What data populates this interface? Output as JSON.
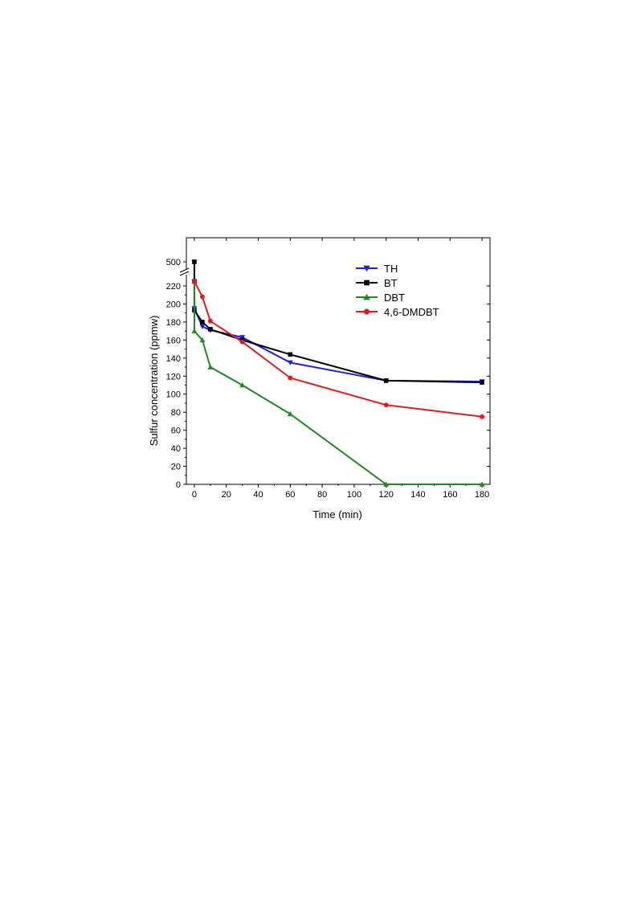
{
  "chart_data": {
    "type": "line",
    "xlabel": "Time (min)",
    "ylabel": "Sulfur concentration (ppmw)",
    "xlim": [
      -5,
      185
    ],
    "ylim": [
      0,
      230
    ],
    "y_axis_break": {
      "break_above": 225,
      "upper_tick": 500
    },
    "x_ticks": [
      0,
      20,
      40,
      60,
      80,
      100,
      120,
      140,
      160,
      180
    ],
    "x_tick_labels": [
      "0",
      "20",
      "40",
      "60",
      "80",
      "100",
      "120",
      "140",
      "160",
      "180"
    ],
    "y_ticks": [
      0,
      20,
      40,
      60,
      80,
      100,
      120,
      140,
      160,
      180,
      200,
      220
    ],
    "y_tick_labels": [
      "0",
      "20",
      "40",
      "60",
      "80",
      "100",
      "120",
      "140",
      "160",
      "180",
      "200",
      "220"
    ],
    "y_break_tick_label": "500",
    "legend_position": "top-right",
    "grid": false,
    "series": [
      {
        "name": "TH",
        "color": "#1f1fe0",
        "marker": "triangle-down",
        "x": [
          0,
          0,
          0,
          5,
          10,
          30,
          60,
          120,
          180
        ],
        "y": [
          500,
          225,
          195,
          175,
          171,
          163,
          135,
          115,
          114
        ]
      },
      {
        "name": "BT",
        "color": "#000000",
        "marker": "square",
        "x": [
          0,
          0,
          0,
          5,
          10,
          30,
          60,
          120,
          180
        ],
        "y": [
          500,
          225,
          193,
          180,
          172,
          160,
          144,
          115,
          113
        ]
      },
      {
        "name": "DBT",
        "color": "#1c8a1c",
        "marker": "triangle-up",
        "x": [
          0,
          0,
          5,
          10,
          30,
          60,
          120,
          180
        ],
        "y": [
          225,
          170,
          160,
          130,
          110,
          78,
          0,
          0
        ]
      },
      {
        "name": "4,6-DMDBT",
        "color": "#e01c1c",
        "marker": "circle",
        "x": [
          0,
          5,
          10,
          30,
          60,
          120,
          180
        ],
        "y": [
          225,
          208,
          181,
          158,
          118,
          88,
          75
        ]
      }
    ]
  }
}
